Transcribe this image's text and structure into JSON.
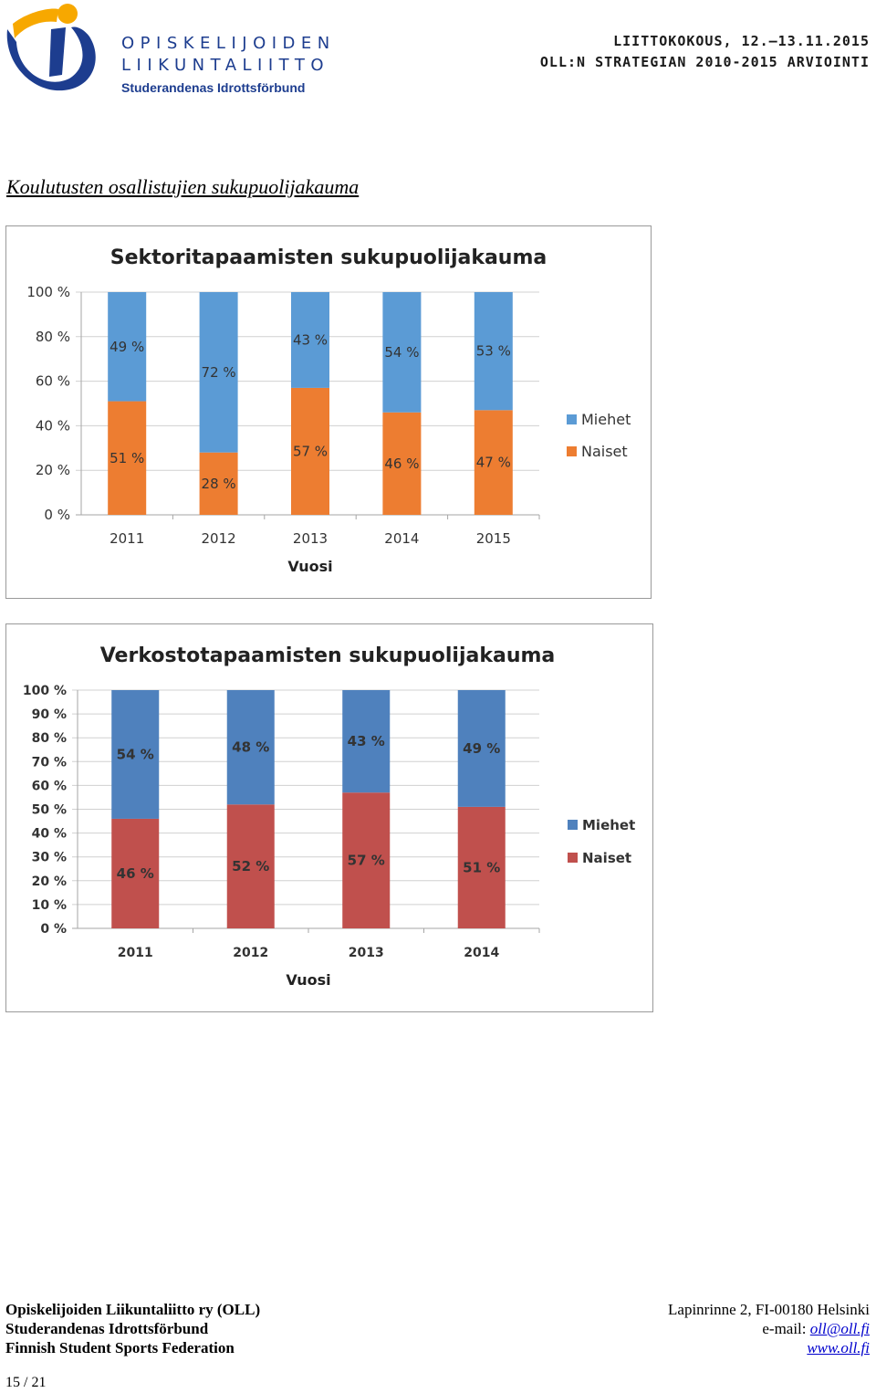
{
  "header": {
    "org_line1": "OPISKELIJOIDEN",
    "org_line2": "LIIKUNTALIITTO",
    "org_line3": "Studerandenas Idrottsförbund",
    "meeting": "LIITTOKOKOUS, 12.–13.11.2015",
    "strategy": "OLL:N STRATEGIAN 2010-2015 ARVIOINTI"
  },
  "section_title": "Koulutusten osallistujien sukupuolijakauma",
  "chart_data": [
    {
      "type": "bar",
      "stacked": "percent",
      "title": "Sektoritapaamisten sukupuolijakauma",
      "xlabel": "Vuosi",
      "ylabel": "",
      "categories": [
        "2011",
        "2012",
        "2013",
        "2014",
        "2015"
      ],
      "series": [
        {
          "name": "Naiset",
          "values": [
            51,
            28,
            57,
            46,
            47
          ],
          "labels": [
            "51 %",
            "28 %",
            "57 %",
            "46 %",
            "47 %"
          ],
          "color": "#ed7d31"
        },
        {
          "name": "Miehet",
          "values": [
            49,
            72,
            43,
            54,
            53
          ],
          "labels": [
            "49 %",
            "72 %",
            "43 %",
            "54 %",
            "53 %"
          ],
          "color": "#5b9bd5"
        }
      ],
      "ylim": [
        0,
        100
      ],
      "yticks": [
        "0 %",
        "20 %",
        "40 %",
        "60 %",
        "80 %",
        "100 %"
      ],
      "ytick_values": [
        0,
        20,
        40,
        60,
        80,
        100
      ],
      "grid": true,
      "legend": "right"
    },
    {
      "type": "bar",
      "stacked": "percent",
      "title": "Verkostotapaamisten sukupuolijakauma",
      "xlabel": "Vuosi",
      "ylabel": "",
      "categories": [
        "2011",
        "2012",
        "2013",
        "2014"
      ],
      "series": [
        {
          "name": "Naiset",
          "values": [
            46,
            52,
            57,
            51
          ],
          "labels": [
            "46 %",
            "52 %",
            "57 %",
            "51 %"
          ],
          "color": "#c0504d"
        },
        {
          "name": "Miehet",
          "values": [
            54,
            48,
            43,
            49
          ],
          "labels": [
            "54 %",
            "48 %",
            "43 %",
            "49 %"
          ],
          "color": "#4f81bd"
        }
      ],
      "ylim": [
        0,
        100
      ],
      "yticks": [
        "0 %",
        "10 %",
        "20 %",
        "30 %",
        "40 %",
        "50 %",
        "60 %",
        "70 %",
        "80 %",
        "90 %",
        "100 %"
      ],
      "ytick_values": [
        0,
        10,
        20,
        30,
        40,
        50,
        60,
        70,
        80,
        90,
        100
      ],
      "grid": true,
      "legend": "right"
    }
  ],
  "footer": {
    "left_line1": "Opiskelijoiden Liikuntaliitto ry (OLL)",
    "left_line2": "Studerandenas Idrottsförbund",
    "left_line3": "Finnish Student Sports Federation",
    "address": "Lapinrinne 2, FI-00180 Helsinki",
    "email_label": "e-mail:",
    "email": "oll@oll.fi",
    "website": "www.oll.fi"
  },
  "page_number": "15 / 21"
}
